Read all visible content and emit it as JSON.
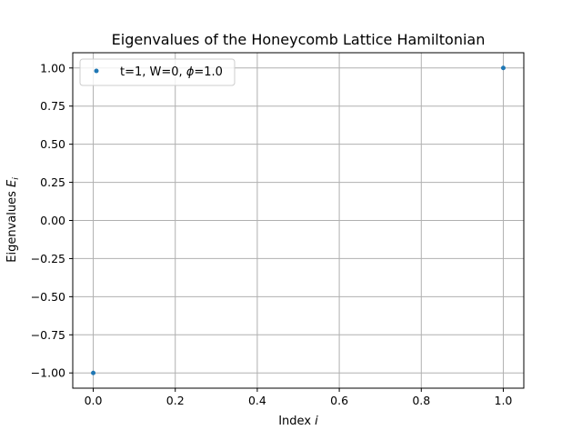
{
  "chart_data": {
    "type": "scatter",
    "title": "Eigenvalues of the Honeycomb Lattice Hamiltonian",
    "xlabel": {
      "text": "Index ",
      "var": "i"
    },
    "ylabel": {
      "text": "Eigenvalues ",
      "var": "E",
      "sub": "i"
    },
    "xlim": [
      -0.05,
      1.05
    ],
    "ylim": [
      -1.1,
      1.1
    ],
    "xticks": [
      0.0,
      0.2,
      0.4,
      0.6,
      0.8,
      1.0
    ],
    "xtick_labels": [
      "0.0",
      "0.2",
      "0.4",
      "0.6",
      "0.8",
      "1.0"
    ],
    "yticks": [
      -1.0,
      -0.75,
      -0.5,
      -0.25,
      0.0,
      0.25,
      0.5,
      0.75,
      1.0
    ],
    "ytick_labels": [
      "−1.00",
      "−0.75",
      "−0.50",
      "−0.25",
      "0.00",
      "0.25",
      "0.50",
      "0.75",
      "1.00"
    ],
    "grid": true,
    "legend_position": "top-left",
    "series": [
      {
        "legend_parts": [
          "t=1, W=0, ",
          "ϕ",
          "=1.0"
        ],
        "color": "#1f77b4",
        "marker": "point",
        "x": [
          0,
          1
        ],
        "y": [
          -1.0,
          1.0
        ]
      }
    ]
  }
}
